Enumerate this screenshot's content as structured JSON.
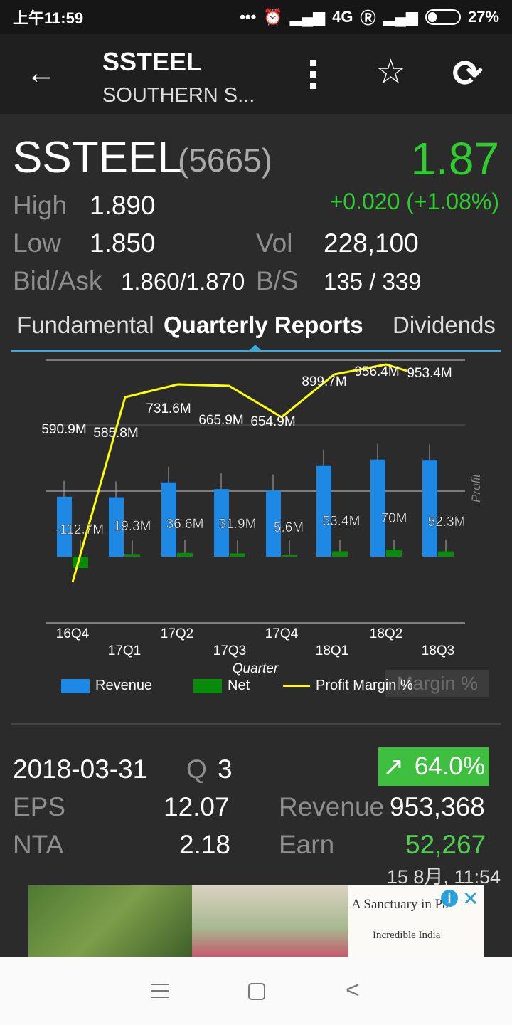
{
  "status_bar": {
    "time": "上午11:59",
    "network": "4G",
    "battery": "27%"
  },
  "header": {
    "title": "SSTEEL",
    "subtitle": "SOUTHERN S..."
  },
  "quote": {
    "symbol": "SSTEEL",
    "code": "(5665)",
    "price": "1.87",
    "change": "+0.020 (+1.08%)",
    "high_label": "High",
    "high": "1.890",
    "low_label": "Low",
    "low": "1.850",
    "vol_label": "Vol",
    "vol": "228,100",
    "bidask_label": "Bid/Ask",
    "bidask": "1.860/1.870",
    "bs_label": "B/S",
    "bs": "135 / 339"
  },
  "tabs": [
    {
      "label": "Fundamental"
    },
    {
      "label": "Quarterly Reports"
    },
    {
      "label": "Dividends"
    }
  ],
  "chart_data": {
    "type": "bar",
    "categories": [
      "16Q4",
      "17Q1",
      "17Q2",
      "17Q3",
      "17Q4",
      "18Q1",
      "18Q2",
      "18Q3"
    ],
    "series": [
      {
        "name": "Revenue",
        "values": [
          590.9,
          585.8,
          731.6,
          665.9,
          654.9,
          899.7,
          956.4,
          953.4
        ],
        "labels": [
          "590.9M",
          "585.8M",
          "731.6M",
          "665.9M",
          "654.9M",
          "899.7M",
          "956.4M",
          "953.4M"
        ]
      },
      {
        "name": "Net",
        "values": [
          -112.7,
          19.3,
          36.6,
          31.9,
          5.6,
          53.4,
          70,
          52.3
        ],
        "labels": [
          "-112.7M",
          "19.3M",
          "36.6M",
          "31.9M",
          "5.6M",
          "53.4M",
          "70M",
          "52.3M"
        ]
      },
      {
        "name": "Profit Margin %",
        "values": [
          -19.1,
          3.3,
          5.0,
          4.8,
          0.9,
          5.9,
          7.3,
          5.5
        ]
      }
    ],
    "xlabel": "Quarter",
    "y2label": "Profit",
    "legend_position": "bottom",
    "colors": {
      "revenue": "#1e88e5",
      "net": "#0a8a0a",
      "margin": "#ffff00"
    }
  },
  "legend": {
    "revenue": "Revenue",
    "net": "Net",
    "margin": "Profit Margin %",
    "margin_button": "Margin %"
  },
  "report": {
    "date": "2018-03-31",
    "q_label": "Q",
    "q_value": "3",
    "growth": "64.0%",
    "eps_label": "EPS",
    "eps": "12.07",
    "nta_label": "NTA",
    "nta": "2.18",
    "revenue_label": "Revenue",
    "revenue": "953,368",
    "earn_label": "Earn",
    "earn": "52,267",
    "timestamp": "15 8月, 11:54"
  },
  "ad": {
    "headline": "A Sanctuary in Pa",
    "brand": "Incredible India"
  }
}
